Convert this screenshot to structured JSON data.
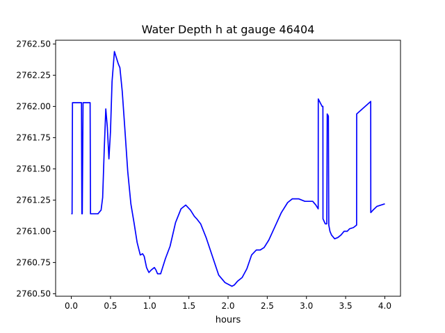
{
  "chart_data": {
    "type": "line",
    "title": "Water Depth h at gauge 46404",
    "xlabel": "hours",
    "ylabel": "",
    "xlim": [
      -0.2,
      4.2
    ],
    "ylim": [
      2760.48,
      2762.53
    ],
    "grid": false,
    "legend": "none",
    "x_ticks": [
      0.0,
      0.5,
      1.0,
      1.5,
      2.0,
      2.5,
      3.0,
      3.5,
      4.0
    ],
    "x_tick_labels": [
      "0.0",
      "0.5",
      "1.0",
      "1.5",
      "2.0",
      "2.5",
      "3.0",
      "3.5",
      "4.0"
    ],
    "y_ticks": [
      2760.5,
      2760.75,
      2761.0,
      2761.25,
      2761.5,
      2761.75,
      2762.0,
      2762.25,
      2762.5
    ],
    "y_tick_labels": [
      "2760.50",
      "2760.75",
      "2761.00",
      "2761.25",
      "2761.50",
      "2761.75",
      "2762.00",
      "2762.25",
      "2762.50"
    ],
    "series": [
      {
        "color": "#0000ff",
        "x": [
          0.0,
          0.01,
          0.015,
          0.13,
          0.135,
          0.14,
          0.15,
          0.155,
          0.24,
          0.245,
          0.3,
          0.34,
          0.38,
          0.4,
          0.42,
          0.44,
          0.46,
          0.48,
          0.5,
          0.52,
          0.55,
          0.58,
          0.6,
          0.62,
          0.65,
          0.68,
          0.72,
          0.76,
          0.8,
          0.84,
          0.88,
          0.91,
          0.93,
          0.96,
          0.99,
          1.02,
          1.06,
          1.08,
          1.1,
          1.14,
          1.17,
          1.2,
          1.26,
          1.33,
          1.4,
          1.46,
          1.52,
          1.57,
          1.6,
          1.65,
          1.72,
          1.8,
          1.88,
          1.96,
          2.05,
          2.08,
          2.12,
          2.18,
          2.24,
          2.3,
          2.36,
          2.41,
          2.46,
          2.52,
          2.6,
          2.68,
          2.76,
          2.82,
          2.9,
          2.98,
          3.03,
          3.08,
          3.12,
          3.15,
          3.151,
          3.2,
          3.21,
          3.211,
          3.24,
          3.26,
          3.265,
          3.27,
          3.275,
          3.28,
          3.285,
          3.3,
          3.32,
          3.36,
          3.4,
          3.44,
          3.48,
          3.52,
          3.55,
          3.6,
          3.64,
          3.641,
          3.82,
          3.821,
          3.85,
          3.9,
          4.0
        ],
        "values": [
          2761.14,
          2761.14,
          2762.03,
          2762.03,
          2761.14,
          2761.14,
          2762.03,
          2762.03,
          2762.03,
          2761.14,
          2761.14,
          2761.14,
          2761.17,
          2761.27,
          2761.65,
          2761.98,
          2761.83,
          2761.58,
          2761.8,
          2762.2,
          2762.44,
          2762.38,
          2762.34,
          2762.31,
          2762.12,
          2761.85,
          2761.48,
          2761.22,
          2761.07,
          2760.91,
          2760.81,
          2760.82,
          2760.8,
          2760.71,
          2760.67,
          2760.69,
          2760.71,
          2760.69,
          2760.66,
          2760.66,
          2760.72,
          2760.78,
          2760.88,
          2761.07,
          2761.18,
          2761.21,
          2761.17,
          2761.12,
          2761.1,
          2761.06,
          2760.95,
          2760.8,
          2760.65,
          2760.59,
          2760.56,
          2760.57,
          2760.6,
          2760.63,
          2760.7,
          2760.81,
          2760.85,
          2760.85,
          2760.87,
          2760.93,
          2761.04,
          2761.15,
          2761.23,
          2761.26,
          2761.26,
          2761.24,
          2761.24,
          2761.24,
          2761.21,
          2761.18,
          2762.06,
          2762.0,
          2762.0,
          2761.1,
          2761.06,
          2761.06,
          2761.94,
          2761.93,
          2761.93,
          2761.92,
          2761.05,
          2761.0,
          2760.97,
          2760.94,
          2760.95,
          2760.97,
          2761.0,
          2761.0,
          2761.02,
          2761.03,
          2761.05,
          2761.94,
          2762.04,
          2761.15,
          2761.17,
          2761.2,
          2761.22
        ]
      }
    ]
  }
}
